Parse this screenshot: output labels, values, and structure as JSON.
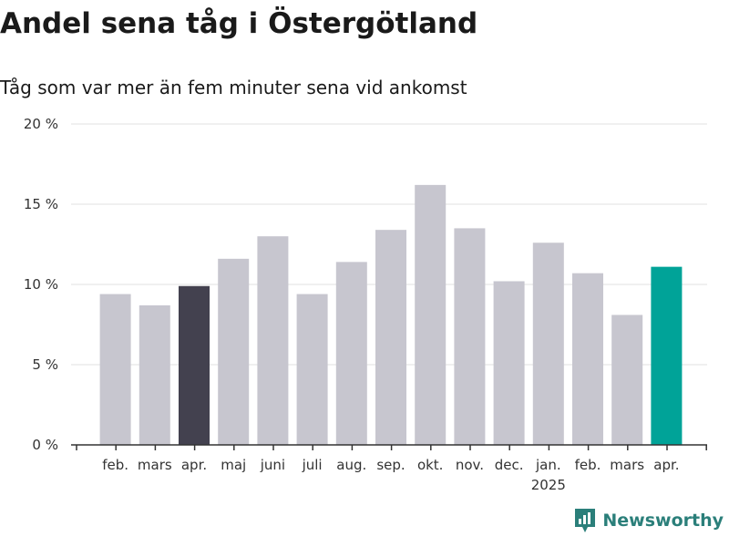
{
  "title": "Andel sena tåg i Östergötland",
  "subtitle": "Tåg som var mer än fem minuter sena vid ankomst",
  "brand": {
    "name": "Newsworthy",
    "icon": "newsworthy-logo-icon"
  },
  "chart_data": {
    "type": "bar",
    "categories": [
      "feb.",
      "mars",
      "apr.",
      "maj",
      "juni",
      "juli",
      "aug.",
      "sep.",
      "okt.",
      "nov.",
      "dec.",
      "jan.",
      "feb.",
      "mars",
      "apr."
    ],
    "values": [
      9.4,
      8.7,
      9.9,
      11.6,
      13.0,
      9.4,
      11.4,
      13.4,
      16.2,
      13.5,
      10.2,
      12.6,
      10.7,
      8.1,
      11.1
    ],
    "year_annotations": [
      {
        "index": 11,
        "label": "2025"
      }
    ],
    "y_ticks": [
      "0 %",
      "5 %",
      "10 %",
      "15 %",
      "20 %"
    ],
    "ylim": [
      0,
      20
    ],
    "grid": true,
    "colors": {
      "default": "#c7c6cf",
      "highlight_previous": "#43414f",
      "highlight_latest": "#00a398",
      "grid": "#e0e0e0",
      "axis": "#333333"
    },
    "highlight": {
      "2": "highlight_previous",
      "14": "highlight_latest"
    }
  }
}
